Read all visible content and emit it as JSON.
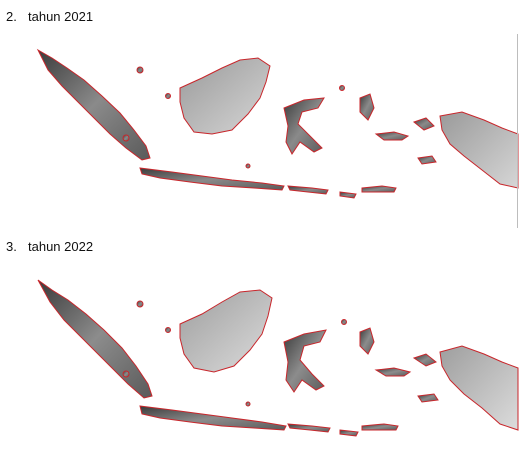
{
  "maps": [
    {
      "number": "2.",
      "label": "tahun 2021"
    },
    {
      "number": "3.",
      "label": "tahun 2022"
    }
  ],
  "colors": {
    "land_dark": "#3c3c3c",
    "land_mid": "#8a8a8a",
    "land_light": "#d6d6d6",
    "border": "#c8262b"
  }
}
